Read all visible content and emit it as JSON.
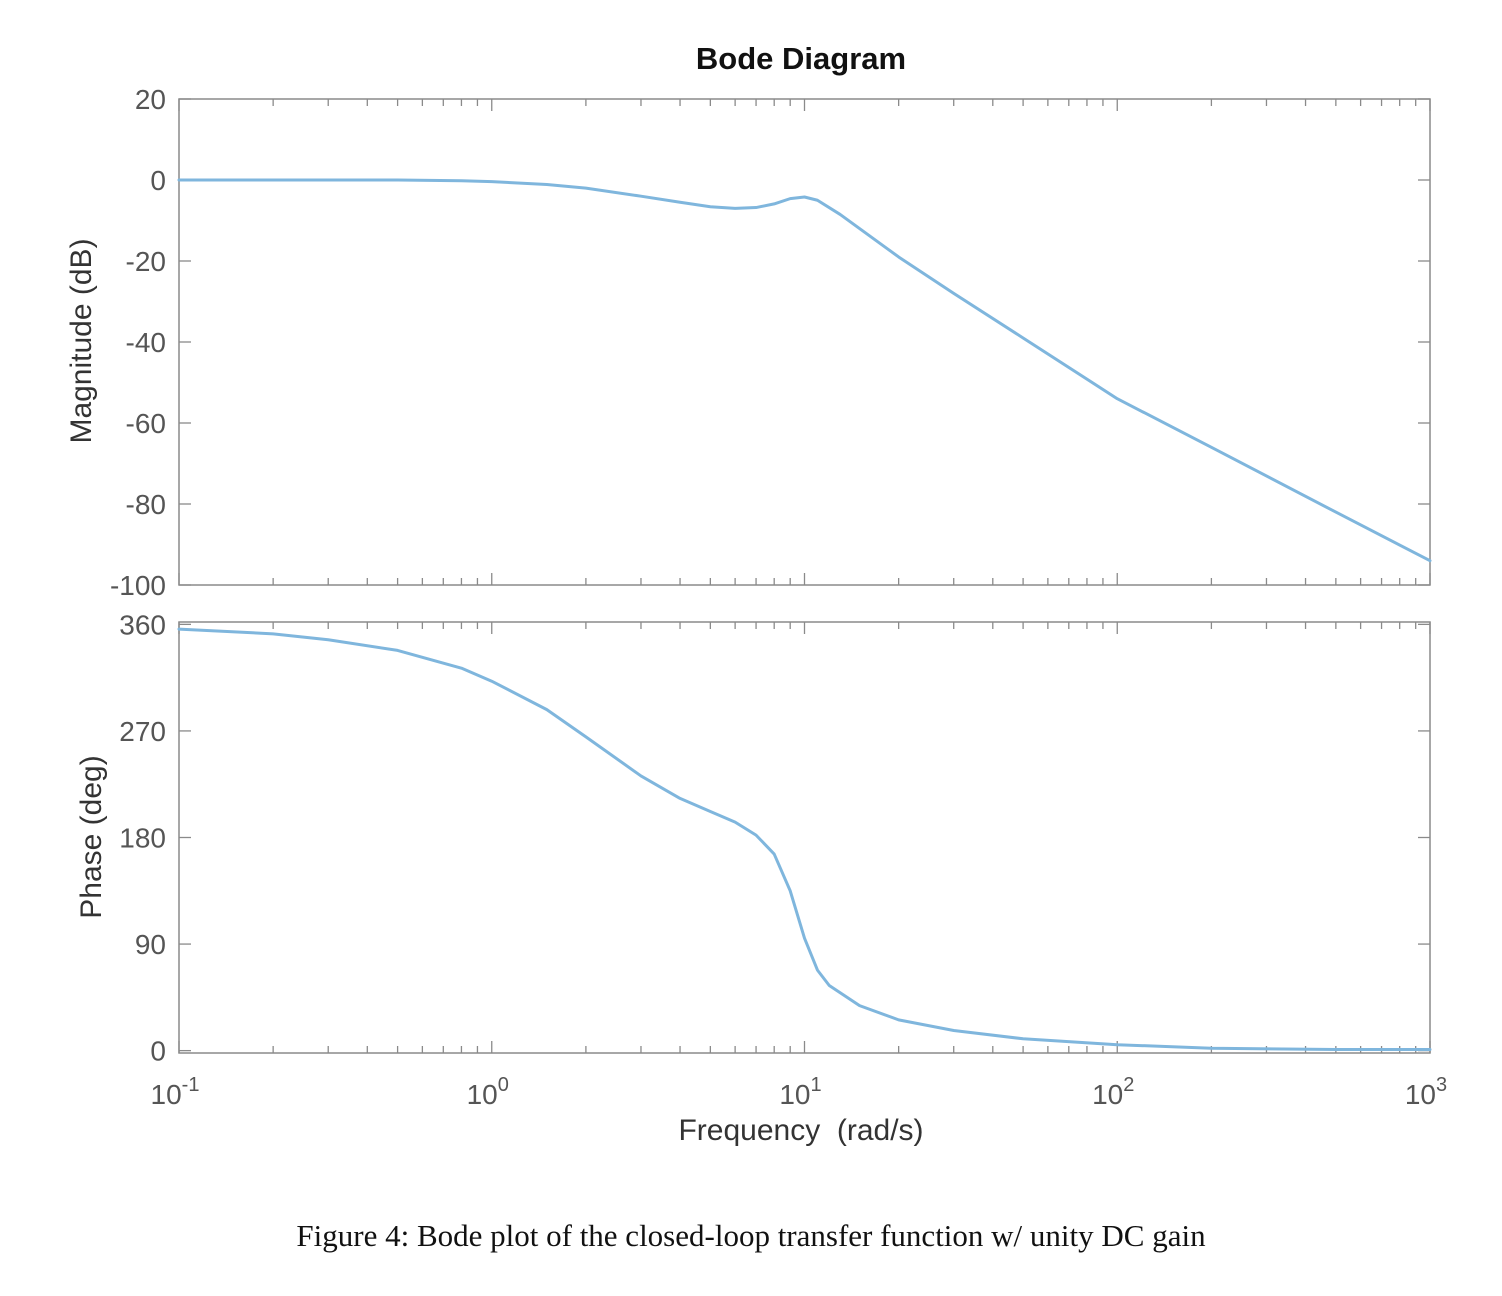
{
  "figure": {
    "caption": "Figure 4: Bode plot of the closed-loop transfer function w/ unity DC gain"
  },
  "chart_data": {
    "type": "line",
    "title": "Bode Diagram",
    "xlabel": "Frequency  (rad/s)",
    "xscale": "log",
    "xlim": [
      0.1,
      1000
    ],
    "x_ticks": [
      {
        "value": 0.1,
        "base": "10",
        "exp": "-1"
      },
      {
        "value": 1,
        "base": "10",
        "exp": "0"
      },
      {
        "value": 10,
        "base": "10",
        "exp": "1"
      },
      {
        "value": 100,
        "base": "10",
        "exp": "2"
      },
      {
        "value": 1000,
        "base": "10",
        "exp": "3"
      }
    ],
    "grid": false,
    "color": "#7fb6dd",
    "panels": [
      {
        "name": "magnitude",
        "ylabel": "Magnitude (dB)",
        "ylim": [
          -100,
          20
        ],
        "y_ticks": [
          20,
          0,
          -20,
          -40,
          -60,
          -80,
          -100
        ],
        "x": [
          0.1,
          0.3,
          0.5,
          0.8,
          1.0,
          1.5,
          2.0,
          3.0,
          4.0,
          5.0,
          6.0,
          7.0,
          8.0,
          9.0,
          10.0,
          11.0,
          13.0,
          15.0,
          20.0,
          30.0,
          50.0,
          100.0,
          200.0,
          500.0,
          1000.0
        ],
        "y": [
          0,
          0,
          0,
          -0.2,
          -0.4,
          -1.1,
          -2.0,
          -4.0,
          -5.5,
          -6.6,
          -7.0,
          -6.8,
          -5.9,
          -4.6,
          -4.2,
          -5.0,
          -8.5,
          -12.0,
          -19.0,
          -28.0,
          -39.0,
          -54.0,
          -66.0,
          -82.0,
          -94.0
        ]
      },
      {
        "name": "phase",
        "ylabel": "Phase (deg)",
        "ylim": [
          -2,
          362
        ],
        "y_ticks": [
          360,
          270,
          180,
          90,
          0
        ],
        "x": [
          0.1,
          0.2,
          0.3,
          0.5,
          0.8,
          1.0,
          1.5,
          2.0,
          3.0,
          4.0,
          5.0,
          6.0,
          7.0,
          8.0,
          9.0,
          10.0,
          11.0,
          12.0,
          15.0,
          20.0,
          30.0,
          50.0,
          100.0,
          200.0,
          500.0,
          1000.0
        ],
        "y": [
          356,
          352,
          347,
          338,
          323,
          312,
          288,
          265,
          232,
          213,
          202,
          193,
          182,
          166,
          135,
          95,
          68,
          55,
          38,
          26,
          17,
          10,
          5,
          2,
          1,
          1
        ]
      }
    ]
  }
}
